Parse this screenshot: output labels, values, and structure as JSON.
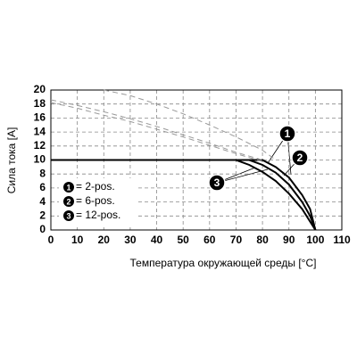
{
  "chart_data": {
    "type": "line",
    "y_label": "Сила тока [A]",
    "x_label": "Температура окружающей среды [°C]",
    "xlim": [
      0,
      110
    ],
    "ylim": [
      0,
      20
    ],
    "xticks": [
      0,
      10,
      20,
      30,
      40,
      50,
      60,
      70,
      80,
      90,
      100,
      110
    ],
    "yticks": [
      0,
      2,
      4,
      6,
      8,
      10,
      12,
      14,
      16,
      18,
      20
    ],
    "grid": true,
    "series": [
      {
        "name": "= 2-pos.",
        "marker": "1",
        "color": "#000000",
        "dashed": false,
        "x": [
          0,
          80,
          85,
          90,
          95,
          98,
          100
        ],
        "values": [
          10,
          10,
          9,
          7.5,
          5,
          3,
          0
        ]
      },
      {
        "name": "= 6-pos.",
        "marker": "2",
        "color": "#000000",
        "dashed": false,
        "x": [
          0,
          75,
          80,
          85,
          90,
          95,
          98,
          100
        ],
        "values": [
          10,
          10,
          9.3,
          8.2,
          6.5,
          4,
          2,
          0
        ]
      },
      {
        "name": "= 12-pos.",
        "marker": "3",
        "color": "#000000",
        "dashed": false,
        "x": [
          0,
          70,
          75,
          80,
          85,
          90,
          95,
          100
        ],
        "values": [
          10,
          10,
          9.3,
          8.3,
          7,
          5.2,
          3,
          0
        ]
      },
      {
        "color": "#999999",
        "dashed": true,
        "x": [
          20,
          30,
          40,
          50,
          60,
          70,
          80,
          85
        ],
        "values": [
          20,
          19.2,
          18,
          16.6,
          15,
          13.3,
          11.4,
          10
        ]
      },
      {
        "color": "#999999",
        "dashed": true,
        "x": [
          0,
          10,
          20,
          30,
          40,
          50,
          60,
          70,
          80
        ],
        "values": [
          18.6,
          17.8,
          16.9,
          15.9,
          14.8,
          13.6,
          12.4,
          11.1,
          10
        ]
      },
      {
        "color": "#999999",
        "dashed": true,
        "x": [
          0,
          10,
          20,
          30,
          40,
          50,
          60,
          70,
          80
        ],
        "values": [
          18.2,
          17.4,
          16.4,
          15.5,
          14.4,
          13.3,
          12.1,
          10.9,
          9.8
        ]
      }
    ]
  }
}
